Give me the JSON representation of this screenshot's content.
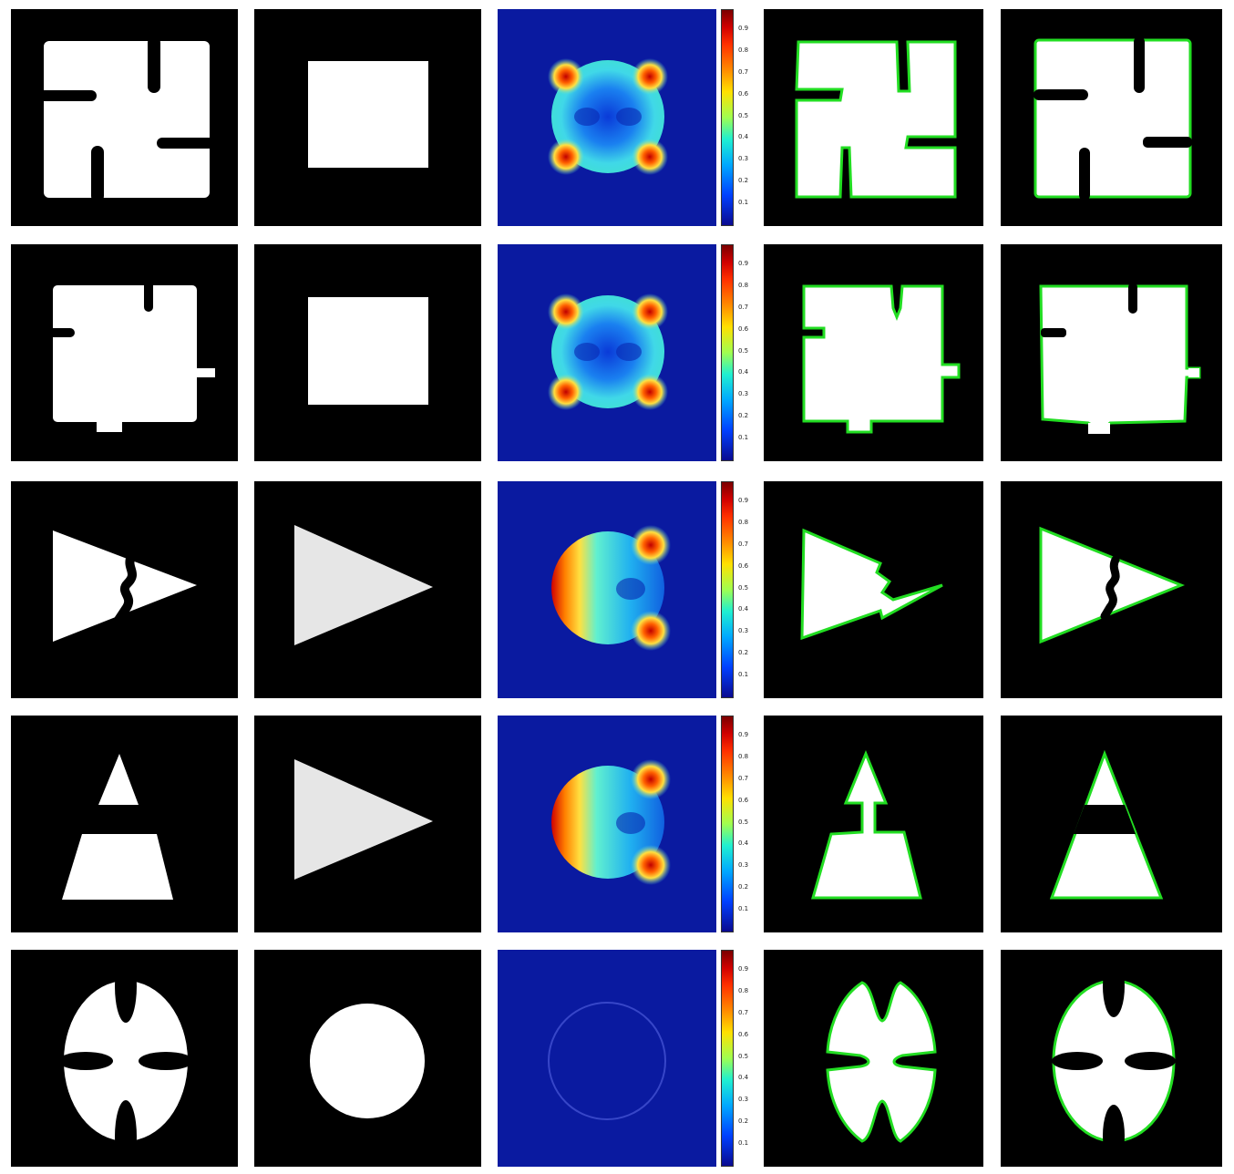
{
  "figure": {
    "rows": [
      {
        "shape": "square-with-four-slots"
      },
      {
        "shape": "square-with-tabs-and-notches"
      },
      {
        "shape": "triangle-with-crack"
      },
      {
        "shape": "split-triangle"
      },
      {
        "shape": "ellipse-with-four-notches"
      }
    ],
    "columns": [
      "input-image",
      "shape-prior",
      "probability-map",
      "segmentation-result-1",
      "segmentation-result-2"
    ],
    "colorbar_ticks": [
      "0.9",
      "0.8",
      "0.7",
      "0.6",
      "0.5",
      "0.4",
      "0.3",
      "0.2",
      "0.1"
    ],
    "colors": {
      "background": "#000000",
      "foreground": "#ffffff",
      "prior_gray": "#e6e6e6",
      "contour": "#22dd22",
      "heatmap_base": "#0a1aa0"
    }
  }
}
